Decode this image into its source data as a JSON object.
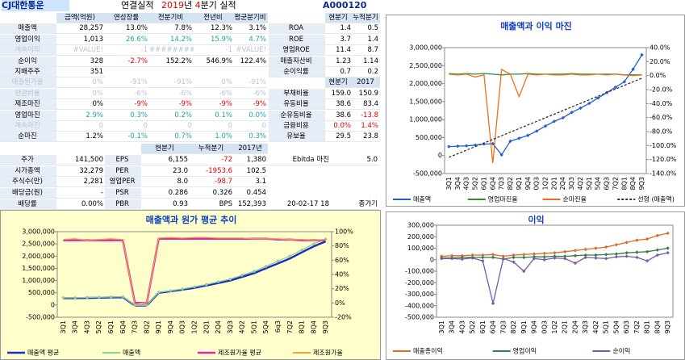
{
  "header": {
    "company": "CJ대한통운",
    "basis": "연결실적",
    "year": "2019",
    "year_unit": "년",
    "quarter": "4",
    "rest": "분기 실적",
    "code": "A000120"
  },
  "table": {
    "header": [
      "금액(억원)",
      "연성장률",
      "전분기비",
      "전년비",
      "평균분기비"
    ],
    "rows": [
      [
        "매출액",
        "28,257",
        "13.0%",
        "7.8%",
        "12.3%",
        "3.1%"
      ],
      [
        "영업이익",
        "1,013",
        "26.6%",
        "14.2%",
        "15.9%",
        "4.7%"
      ],
      [
        "계속이익",
        "#VALUE!",
        "-1",
        "########",
        "-1",
        "#VALUE!"
      ],
      [
        "순이익",
        "328",
        "-2.7%",
        "152.2%",
        "546.9%",
        "122.4%"
      ],
      [
        "지배주주",
        "351"
      ],
      [
        "매출원가율",
        "0%",
        "-91%",
        "-91%",
        "0%",
        "-91%"
      ],
      [
        "판관비율",
        "0%",
        "-6%",
        "-6%",
        "-6%",
        "-6%"
      ],
      [
        "제조마진",
        "0%",
        "-9%",
        "-9%",
        "-9%",
        "-9%"
      ],
      [
        "영업마진",
        "2.9%",
        "0.3%",
        "0.2%",
        "0.1%",
        "0.0%"
      ],
      [
        "계속마진",
        "0",
        "0",
        "0",
        "0",
        "0"
      ],
      [
        "순마진",
        "1.2%",
        "-0.1%",
        "0.7%",
        "1.0%",
        "0.3%"
      ]
    ]
  },
  "ratios": {
    "header": [
      "현분기",
      "누적분기"
    ],
    "rows": [
      [
        "ROA",
        "1.4",
        "0.5"
      ],
      [
        "ROE",
        "3.7",
        "1.4"
      ],
      [
        "영업ROE",
        "11.4",
        "8.7"
      ],
      [
        "매출자산비",
        "1.23",
        "1.14"
      ],
      [
        "순이익률",
        "0.7",
        "0.2"
      ]
    ],
    "header2": [
      "현분기",
      "2017"
    ],
    "rows2": [
      [
        "부채비율",
        "159.0",
        "150.9"
      ],
      [
        "유동비율",
        "38.6",
        "83.4"
      ],
      [
        "순유동비율",
        "38.6",
        "-13.8"
      ],
      [
        "금융비용",
        "0.0%",
        "1.4%"
      ],
      [
        "유보율",
        "29.5",
        "23.8"
      ]
    ]
  },
  "lower": {
    "header": [
      "현분기",
      "누적분기",
      "2017년"
    ],
    "rows": [
      [
        "주가",
        "141,500",
        "EPS",
        "6,155",
        "-72",
        "1,380",
        "Ebitda 마진",
        "5.0"
      ],
      [
        "시가총액",
        "32,279",
        "PER",
        "23.0",
        "-1953.6",
        "102.5",
        null,
        null
      ],
      [
        "주식수(만)",
        "2,281",
        "영업PER",
        "8.0",
        "-98.7",
        "3.1",
        null,
        null
      ],
      [
        "배당금(원)",
        "-",
        "PSR",
        "0.286",
        "0.326",
        "0.454",
        null,
        null
      ],
      [
        "배당률",
        "0.00%",
        "PBR",
        "0.93",
        "BPS",
        "152,393",
        "20-02-17 18",
        "종가기"
      ]
    ]
  },
  "chart_data": [
    {
      "type": "line",
      "title": "매출액과 이익 마진",
      "grid": false,
      "background": "#ffffff",
      "categories": [
        "3Q1",
        "3Q4",
        "4Q3",
        "5Q2",
        "6Q1",
        "6Q4",
        "7Q3",
        "8Q2",
        "9Q1",
        "9Q4",
        "0Q3",
        "1Q2",
        "2Q1",
        "2Q4",
        "3Q3",
        "4Q2",
        "5Q1",
        "5Q4",
        "6Q3",
        "7Q2",
        "8Q1",
        "8Q4",
        "9Q3"
      ],
      "ylim": [
        -500000,
        3000000
      ],
      "yticks": [
        {
          "value": -500000,
          "label": "-500,000"
        },
        {
          "value": 0,
          "label": "0"
        },
        {
          "value": 500000,
          "label": "500,000"
        },
        {
          "value": 1000000,
          "label": "1,000,000"
        },
        {
          "value": 1500000,
          "label": "1,500,000"
        },
        {
          "value": 2000000,
          "label": "2,000,000"
        },
        {
          "value": 2500000,
          "label": "2,500,000"
        },
        {
          "value": 3000000,
          "label": "3,000,000"
        }
      ],
      "y2lim": [
        -140,
        40
      ],
      "y2ticks": [
        {
          "value": -140,
          "label": "-140.0%"
        },
        {
          "value": -120,
          "label": "-120.0%"
        },
        {
          "value": -100,
          "label": "-100.0%"
        },
        {
          "value": -80,
          "label": "-80.0%"
        },
        {
          "value": -60,
          "label": "-60.0%"
        },
        {
          "value": -40,
          "label": "-40.0%"
        },
        {
          "value": -20,
          "label": "-20.0%"
        },
        {
          "value": 0,
          "label": "0.0%"
        },
        {
          "value": 20,
          "label": "20.0%"
        },
        {
          "value": 40,
          "label": "40.0%"
        }
      ],
      "series": [
        {
          "name": "매출액",
          "color": "#1f5fd6",
          "marker": true,
          "values": [
            250000,
            260000,
            270000,
            290000,
            320000,
            330000,
            20000,
            400000,
            480000,
            560000,
            680000,
            820000,
            950000,
            1050000,
            1200000,
            1320000,
            1450000,
            1600000,
            1750000,
            1900000,
            2050000,
            2400000,
            2800000
          ]
        },
        {
          "name": "영업마진율",
          "color": "#2e8b2e",
          "axis": "y2",
          "values": [
            3,
            2,
            3,
            2,
            3,
            2,
            1,
            2,
            2,
            3,
            2,
            2,
            2,
            2,
            3,
            2,
            2,
            2,
            2,
            2,
            1,
            1,
            1
          ]
        },
        {
          "name": "순마진율",
          "color": "#e8701a",
          "axis": "y2",
          "values": [
            2,
            1,
            2,
            -2,
            1,
            -125,
            9,
            2,
            -30,
            2,
            1,
            2,
            1,
            1,
            2,
            1,
            1,
            2,
            1,
            2,
            1,
            0,
            1
          ]
        },
        {
          "name": "선형 (매출액)",
          "color": "#333333",
          "dash": true,
          "values": [
            -50000,
            50000,
            150000,
            250000,
            350000,
            450000,
            550000,
            650000,
            750000,
            850000,
            950000,
            1050000,
            1150000,
            1250000,
            1350000,
            1450000,
            1550000,
            1650000,
            1750000,
            1850000,
            1950000,
            2050000,
            2150000
          ]
        }
      ]
    },
    {
      "type": "line",
      "title": "매출액과 원가 평균 추이",
      "grid": false,
      "background": "#ffffcc",
      "categories": [
        "3Q1",
        "3Q4",
        "4Q3",
        "5Q2",
        "6Q1",
        "6Q4",
        "7Q3",
        "8Q2",
        "9Q1",
        "9Q4",
        "0Q3",
        "1Q2",
        "2Q1",
        "2Q4",
        "3Q3",
        "4Q2",
        "5Q1",
        "5Q4",
        "6q3",
        "7Q2",
        "8Q1",
        "8Q4",
        "9Q3"
      ],
      "ylim": [
        -500000,
        3000000
      ],
      "yticks": [
        {
          "value": -500000,
          "label": "-500,000"
        },
        {
          "value": 0,
          "label": "0"
        },
        {
          "value": 500000,
          "label": "500,000"
        },
        {
          "value": 1000000,
          "label": "1,000,000"
        },
        {
          "value": 1500000,
          "label": "1,500,000"
        },
        {
          "value": 2000000,
          "label": "2,000,000"
        },
        {
          "value": 2500000,
          "label": "2,500,000"
        },
        {
          "value": 3000000,
          "label": "3,000,000"
        }
      ],
      "y2lim": [
        -20,
        100
      ],
      "y2ticks": [
        {
          "value": -20,
          "label": "-20%"
        },
        {
          "value": 0,
          "label": "0%"
        },
        {
          "value": 20,
          "label": "20%"
        },
        {
          "value": 40,
          "label": "40%"
        },
        {
          "value": 60,
          "label": "60%"
        },
        {
          "value": 80,
          "label": "80%"
        },
        {
          "value": 100,
          "label": "100%"
        }
      ],
      "series": [
        {
          "name": "매출액 평균",
          "color": "#1a2fc8",
          "width": 2.5,
          "values": [
            280000,
            280000,
            290000,
            300000,
            310000,
            320000,
            -20000,
            -20000,
            500000,
            560000,
            630000,
            700000,
            800000,
            900000,
            1000000,
            1150000,
            1300000,
            1500000,
            1700000,
            1900000,
            2150000,
            2400000,
            2600000
          ]
        },
        {
          "name": "매출액",
          "color": "#8fd18f",
          "marker": true,
          "values": [
            300000,
            300000,
            310000,
            320000,
            330000,
            340000,
            -10000,
            -10000,
            520000,
            580000,
            660000,
            740000,
            840000,
            950000,
            1060000,
            1220000,
            1380000,
            1580000,
            1800000,
            2000000,
            2250000,
            2500000,
            2700000
          ]
        },
        {
          "name": "제조원가율 평균",
          "color": "#e020c0",
          "width": 2.5,
          "axis": "y2",
          "values": [
            88,
            88,
            88,
            88,
            88,
            88,
            0,
            0,
            90,
            90,
            90,
            90,
            90,
            90,
            90,
            90,
            90,
            90,
            89,
            89,
            88,
            88,
            88
          ]
        },
        {
          "name": "제조원가율",
          "color": "#f0a040",
          "axis": "y2",
          "values": [
            89,
            90,
            88,
            89,
            90,
            89,
            -2,
            1,
            91,
            92,
            91,
            92,
            92,
            91,
            91,
            91,
            90,
            90,
            90,
            89,
            89,
            88,
            89
          ]
        }
      ]
    },
    {
      "type": "line",
      "title": "이익",
      "grid": false,
      "background": "#ffffff",
      "categories": [
        "3Q1",
        "3Q4",
        "4Q3",
        "5Q2",
        "6Q1",
        "6Q4",
        "7Q3",
        "8Q2",
        "9Q1",
        "9Q4",
        "0Q3",
        "1Q2",
        "2Q1",
        "2Q4",
        "3Q3",
        "4Q2",
        "5Q1",
        "5Q4",
        "6Q3",
        "7Q2",
        "8Q1",
        "8Q4",
        "9Q3"
      ],
      "ylim": [
        -500000,
        300000
      ],
      "yticks": [
        {
          "value": -500000,
          "label": "-500,000"
        },
        {
          "value": -400000,
          "label": "-400,000"
        },
        {
          "value": -300000,
          "label": "-300,000"
        },
        {
          "value": -200000,
          "label": "-200,000"
        },
        {
          "value": -100000,
          "label": "-100,000"
        },
        {
          "value": 0,
          "label": "0"
        },
        {
          "value": 100000,
          "label": "100,000"
        },
        {
          "value": 200000,
          "label": "200,000"
        },
        {
          "value": 300000,
          "label": "300,000"
        }
      ],
      "series": [
        {
          "name": "매출총이익",
          "color": "#e06a20",
          "marker": true,
          "values": [
            30000,
            35000,
            35000,
            40000,
            40000,
            45000,
            30000,
            40000,
            45000,
            50000,
            55000,
            60000,
            70000,
            80000,
            90000,
            100000,
            110000,
            130000,
            150000,
            170000,
            180000,
            210000,
            230000
          ]
        },
        {
          "name": "영업이익",
          "color": "#2e7d4a",
          "marker": true,
          "values": [
            15000,
            15000,
            20000,
            20000,
            20000,
            20000,
            5000,
            20000,
            20000,
            25000,
            25000,
            30000,
            30000,
            35000,
            40000,
            40000,
            45000,
            50000,
            60000,
            65000,
            70000,
            85000,
            100000
          ]
        },
        {
          "name": "순이익",
          "color": "#7a5aa8",
          "marker": true,
          "values": [
            10000,
            10000,
            5000,
            15000,
            -10000,
            -380000,
            10000,
            -20000,
            -100000,
            10000,
            0,
            15000,
            10000,
            -30000,
            20000,
            15000,
            10000,
            25000,
            30000,
            20000,
            -10000,
            40000,
            60000
          ]
        }
      ]
    }
  ]
}
